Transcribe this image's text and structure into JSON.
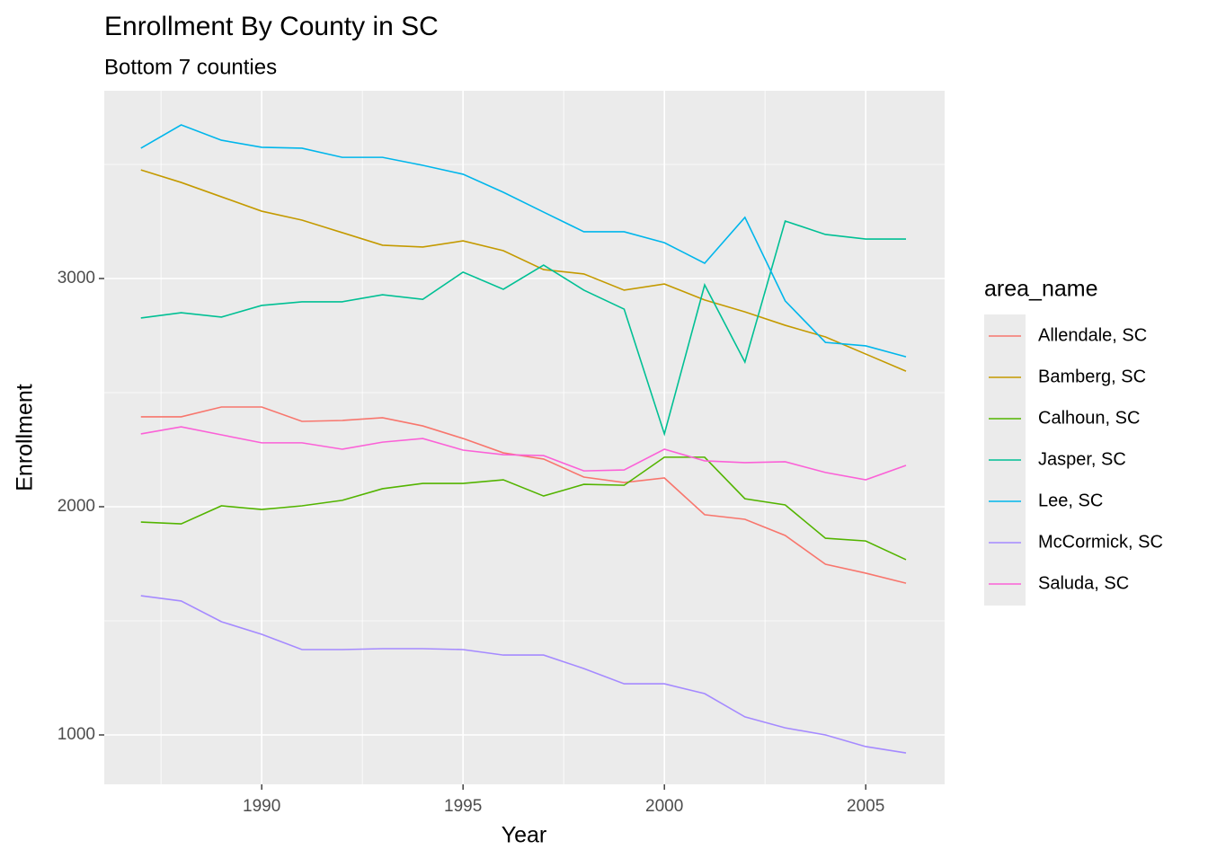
{
  "chart_data": {
    "type": "line",
    "title": "Enrollment By County in SC",
    "subtitle": "Bottom 7 counties",
    "x_label": "Year",
    "y_label": "Enrollment",
    "legend_title": "area_name",
    "legend_position": "right",
    "grid": true,
    "x": [
      1987,
      1988,
      1989,
      1990,
      1991,
      1992,
      1993,
      1994,
      1995,
      1996,
      1997,
      1998,
      1999,
      2000,
      2001,
      2002,
      2003,
      2004,
      2005,
      2006
    ],
    "xlim": [
      1986.09,
      2006.96
    ],
    "xticks": [
      1990,
      1995,
      2000,
      2005
    ],
    "ylim": [
      783.5,
      3822.8
    ],
    "yticks": [
      1000,
      2000,
      3000
    ],
    "series": [
      {
        "name": "Allendale, SC",
        "color": "#F8766D",
        "values": [
          2394,
          2394,
          2437,
          2437,
          2374,
          2378,
          2390,
          2354,
          2299,
          2236,
          2209,
          2130,
          2106,
          2126,
          1965,
          1945,
          1874,
          1748,
          1709,
          1665
        ]
      },
      {
        "name": "Bamberg, SC",
        "color": "#C49A00",
        "values": [
          3476,
          3421,
          3358,
          3295,
          3256,
          3201,
          3146,
          3138,
          3165,
          3122,
          3039,
          3020,
          2949,
          2976,
          2906,
          2854,
          2795,
          2744,
          2669,
          2594
        ]
      },
      {
        "name": "Calhoun, SC",
        "color": "#53B400",
        "values": [
          1933,
          1925,
          2004,
          1988,
          2004,
          2028,
          2079,
          2102,
          2102,
          2118,
          2047,
          2098,
          2094,
          2217,
          2217,
          2035,
          2008,
          1862,
          1850,
          1768
        ]
      },
      {
        "name": "Jasper, SC",
        "color": "#00C094",
        "values": [
          2827,
          2850,
          2831,
          2882,
          2898,
          2898,
          2929,
          2909,
          3028,
          2953,
          3059,
          2949,
          2866,
          2319,
          2972,
          2634,
          3252,
          3193,
          3173,
          3173
        ]
      },
      {
        "name": "Lee, SC",
        "color": "#00B6EB",
        "values": [
          3571,
          3673,
          3606,
          3575,
          3571,
          3531,
          3531,
          3496,
          3457,
          3378,
          3291,
          3205,
          3205,
          3157,
          3067,
          3268,
          2902,
          2720,
          2705,
          2657
        ]
      },
      {
        "name": "McCormick, SC",
        "color": "#A58AFF",
        "values": [
          1610,
          1587,
          1496,
          1441,
          1374,
          1374,
          1378,
          1378,
          1374,
          1350,
          1350,
          1291,
          1224,
          1224,
          1181,
          1079,
          1031,
          1000,
          949,
          921
        ]
      },
      {
        "name": "Saluda, SC",
        "color": "#FB61D7",
        "values": [
          2319,
          2350,
          2315,
          2280,
          2280,
          2252,
          2283,
          2299,
          2248,
          2228,
          2224,
          2157,
          2161,
          2252,
          2201,
          2193,
          2197,
          2150,
          2118,
          2181
        ]
      }
    ]
  }
}
